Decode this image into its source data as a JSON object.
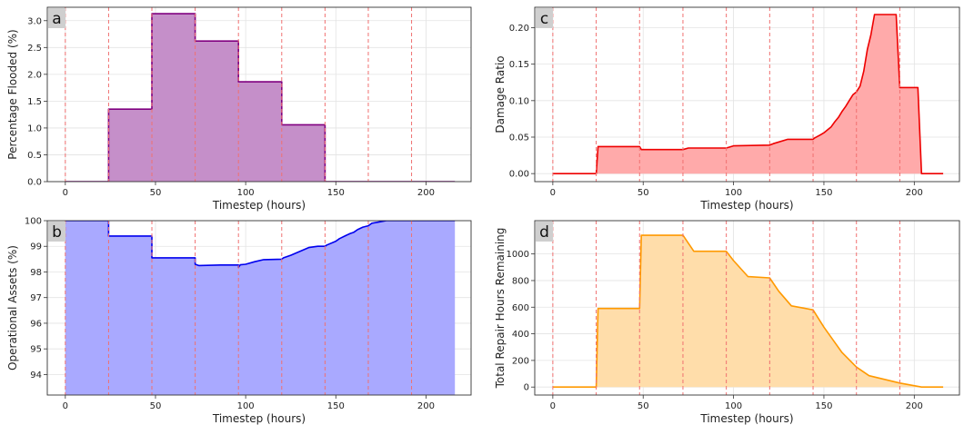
{
  "chart_data": [
    {
      "panel": "a",
      "type": "area",
      "xlabel": "Timestep (hours)",
      "ylabel": "Percentage Flooded (%)",
      "xlim": [
        -10,
        225
      ],
      "ylim": [
        0,
        3.25
      ],
      "xticks": [
        0,
        50,
        100,
        150,
        200
      ],
      "yticks": [
        0.0,
        0.5,
        1.0,
        1.5,
        2.0,
        2.5,
        3.0
      ],
      "ytick_labels": [
        "0.0",
        "0.5",
        "1.0",
        "1.5",
        "2.0",
        "2.5",
        "3.0"
      ],
      "grid": true,
      "event_lines": [
        0,
        24,
        48,
        72,
        96,
        120,
        144,
        168,
        192
      ],
      "line_color": "#800080",
      "fill_color": "#c58fc9",
      "series": [
        {
          "x": [
            0,
            24,
            24,
            48,
            48,
            72,
            72,
            96,
            96,
            120,
            120,
            144,
            144,
            168,
            192,
            216
          ],
          "y": [
            0,
            0,
            1.35,
            1.35,
            3.13,
            3.13,
            2.62,
            2.62,
            1.86,
            1.86,
            1.06,
            1.06,
            0,
            0,
            0,
            0
          ]
        }
      ]
    },
    {
      "panel": "b",
      "type": "area",
      "xlabel": "Timestep (hours)",
      "ylabel": "Operational Assets (%)",
      "xlim": [
        -10,
        225
      ],
      "ylim": [
        93.2,
        100
      ],
      "xticks": [
        0,
        50,
        100,
        150,
        200
      ],
      "yticks": [
        94,
        95,
        96,
        97,
        98,
        99,
        100
      ],
      "ytick_labels": [
        "94",
        "95",
        "96",
        "97",
        "98",
        "99",
        "100"
      ],
      "grid": true,
      "event_lines": [
        0,
        24,
        48,
        72,
        96,
        120,
        144,
        168,
        192
      ],
      "line_color": "#0000ee",
      "fill_color": "#a9a9ff",
      "series": [
        {
          "x": [
            0,
            24,
            24,
            48,
            48,
            72,
            72,
            74,
            86,
            96,
            96,
            97,
            100,
            105,
            110,
            120,
            121,
            125,
            130,
            135,
            140,
            144,
            145,
            150,
            152,
            155,
            158,
            160,
            162,
            165,
            168,
            170,
            174,
            178,
            190,
            200,
            216
          ],
          "y": [
            100,
            100,
            99.4,
            99.4,
            98.55,
            98.55,
            98.3,
            98.25,
            98.27,
            98.27,
            98.18,
            98.28,
            98.3,
            98.4,
            98.48,
            98.5,
            98.55,
            98.65,
            98.8,
            98.95,
            99.0,
            99.0,
            99.05,
            99.2,
            99.3,
            99.4,
            99.5,
            99.55,
            99.65,
            99.75,
            99.8,
            99.9,
            99.95,
            100,
            100,
            100,
            100
          ]
        }
      ]
    },
    {
      "panel": "c",
      "type": "area",
      "xlabel": "Timestep (hours)",
      "ylabel": "Damage Ratio",
      "xlim": [
        -10,
        225
      ],
      "ylim": [
        -0.011,
        0.228
      ],
      "xticks": [
        0,
        50,
        100,
        150,
        200
      ],
      "yticks": [
        0.0,
        0.05,
        0.1,
        0.15,
        0.2
      ],
      "ytick_labels": [
        "0.00",
        "0.05",
        "0.10",
        "0.15",
        "0.20"
      ],
      "grid": true,
      "event_lines": [
        0,
        24,
        48,
        72,
        96,
        120,
        144,
        168,
        192
      ],
      "line_color": "#ee0000",
      "fill_color": "#ffaaaa",
      "series": [
        {
          "x": [
            0,
            24,
            25,
            48,
            49,
            72,
            75,
            96,
            100,
            120,
            122,
            130,
            144,
            145,
            148,
            150,
            152,
            154,
            156,
            158,
            160,
            162,
            164,
            166,
            168,
            170,
            172,
            174,
            176,
            178,
            190,
            192,
            202,
            204,
            216
          ],
          "y": [
            0,
            0,
            0.037,
            0.037,
            0.033,
            0.033,
            0.035,
            0.035,
            0.038,
            0.039,
            0.041,
            0.047,
            0.047,
            0.049,
            0.053,
            0.056,
            0.06,
            0.064,
            0.071,
            0.077,
            0.085,
            0.092,
            0.1,
            0.108,
            0.112,
            0.12,
            0.14,
            0.17,
            0.19,
            0.218,
            0.218,
            0.118,
            0.118,
            0,
            0
          ]
        }
      ]
    },
    {
      "panel": "d",
      "type": "area",
      "xlabel": "Timestep (hours)",
      "ylabel": "Total Repair Hours Remaining",
      "xlim": [
        -10,
        225
      ],
      "ylim": [
        -60,
        1250
      ],
      "xticks": [
        0,
        50,
        100,
        150,
        200
      ],
      "yticks": [
        0,
        200,
        400,
        600,
        800,
        1000
      ],
      "ytick_labels": [
        "0",
        "200",
        "400",
        "600",
        "800",
        "1000"
      ],
      "grid": true,
      "event_lines": [
        0,
        24,
        48,
        72,
        96,
        120,
        144,
        168,
        192
      ],
      "line_color": "#ff9900",
      "fill_color": "#ffddaa",
      "series": [
        {
          "x": [
            0,
            24,
            25,
            48,
            49,
            72,
            78,
            96,
            100,
            108,
            120,
            125,
            132,
            144,
            150,
            160,
            168,
            175,
            192,
            204,
            216
          ],
          "y": [
            0,
            0,
            590,
            590,
            1140,
            1140,
            1020,
            1020,
            950,
            830,
            820,
            720,
            610,
            580,
            450,
            260,
            150,
            85,
            30,
            0,
            0
          ]
        }
      ]
    }
  ]
}
